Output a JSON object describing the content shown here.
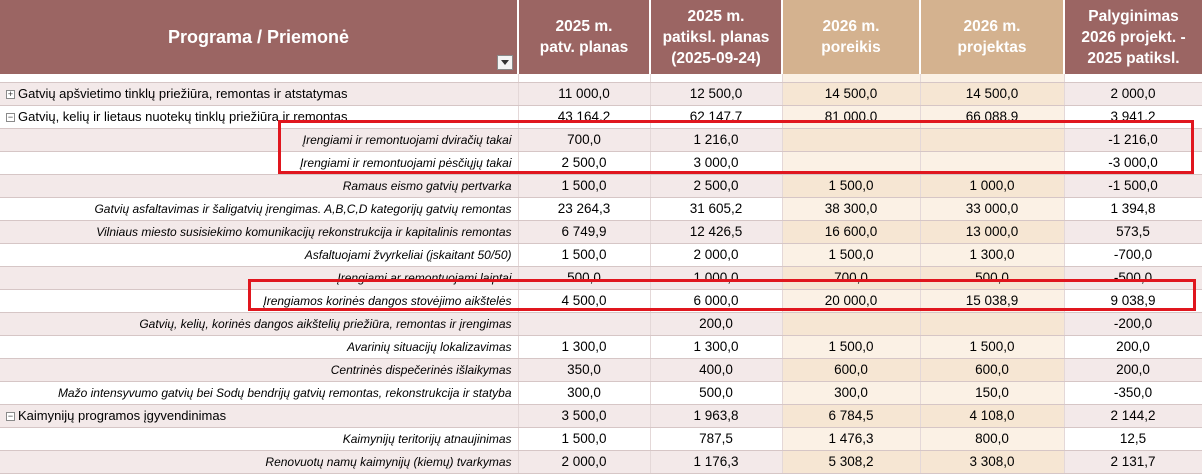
{
  "header": {
    "col_name": "Programa / Priemonė",
    "col1": [
      "2025 m.",
      "patv. planas"
    ],
    "col2": [
      "2025 m.",
      "patiksl. planas",
      "(2025-09-24)"
    ],
    "col3": [
      "2026 m.",
      "poreikis"
    ],
    "col4": [
      "2026 m.",
      "projektas"
    ],
    "col5": [
      "Palyginimas",
      "2026 projekt. -",
      "2025 patiksl."
    ]
  },
  "rows": [
    {
      "type": "grp",
      "toggle": "+",
      "name": "Gatvių apšvietimo tinklų priežiūra, remontas ir atstatymas",
      "v": [
        "11 000,0",
        "12 500,0",
        "14 500,0",
        "14 500,0",
        "2 000,0"
      ]
    },
    {
      "type": "grp",
      "toggle": "−",
      "name": "Gatvių, kelių ir lietaus nuotekų tinklų priežiūra ir remontas",
      "v": [
        "43 164,2",
        "62 147,7",
        "81 000,0",
        "66 088,9",
        "3 941,2"
      ]
    },
    {
      "type": "sub",
      "name": "Įrengiami ir remontuojami dviračių takai",
      "v": [
        "700,0",
        "1 216,0",
        "",
        "",
        "-1 216,0"
      ]
    },
    {
      "type": "sub",
      "name": "Įrengiami ir remontuojami pėsčiųjų takai",
      "v": [
        "2 500,0",
        "3 000,0",
        "",
        "",
        "-3 000,0"
      ]
    },
    {
      "type": "sub",
      "name": "Ramaus eismo gatvių pertvarka",
      "v": [
        "1 500,0",
        "2 500,0",
        "1 500,0",
        "1 000,0",
        "-1 500,0"
      ]
    },
    {
      "type": "sub",
      "name": "Gatvių asfaltavimas ir šaligatvių įrengimas. A,B,C,D kategorijų gatvių remontas",
      "v": [
        "23 264,3",
        "31 605,2",
        "38 300,0",
        "33 000,0",
        "1 394,8"
      ]
    },
    {
      "type": "sub",
      "name": "Vilniaus miesto susisiekimo komunikacijų rekonstrukcija ir kapitalinis remontas",
      "v": [
        "6 749,9",
        "12 426,5",
        "16 600,0",
        "13 000,0",
        "573,5"
      ]
    },
    {
      "type": "sub",
      "name": "Asfaltuojami žvyrkeliai (įskaitant 50/50)",
      "v": [
        "1 500,0",
        "2 000,0",
        "1 500,0",
        "1 300,0",
        "-700,0"
      ]
    },
    {
      "type": "sub",
      "name": "Įrengiami ar remontuojami laiptai",
      "v": [
        "500,0",
        "1 000,0",
        "700,0",
        "500,0",
        "-500,0"
      ]
    },
    {
      "type": "sub",
      "name": "Įrengiamos korinės dangos stovėjimo  aikštelės",
      "v": [
        "4 500,0",
        "6 000,0",
        "20 000,0",
        "15 038,9",
        "9 038,9"
      ]
    },
    {
      "type": "sub",
      "name": "Gatvių, kelių, korinės dangos aikštelių priežiūra, remontas ir įrengimas",
      "v": [
        "",
        "200,0",
        "",
        "",
        "-200,0"
      ]
    },
    {
      "type": "sub",
      "name": "Avarinių situacijų lokalizavimas",
      "v": [
        "1 300,0",
        "1 300,0",
        "1 500,0",
        "1 500,0",
        "200,0"
      ]
    },
    {
      "type": "sub",
      "name": "Centrinės dispečerinės išlaikymas",
      "v": [
        "350,0",
        "400,0",
        "600,0",
        "600,0",
        "200,0"
      ]
    },
    {
      "type": "sub",
      "name": "Mažo intensyvumo gatvių bei Sodų bendrijų gatvių remontas, rekonstrukcija ir statyba",
      "v": [
        "300,0",
        "500,0",
        "300,0",
        "150,0",
        "-350,0"
      ]
    },
    {
      "type": "grp",
      "toggle": "−",
      "name": "Kaimynijų programos įgyvendinimas",
      "v": [
        "3 500,0",
        "1 963,8",
        "6 784,5",
        "4 108,0",
        "2 144,2"
      ]
    },
    {
      "type": "sub",
      "name": "Kaimynijų teritorijų atnaujinimas",
      "v": [
        "1 500,0",
        "787,5",
        "1 476,3",
        "800,0",
        "12,5"
      ]
    },
    {
      "type": "sub",
      "name": "Renovuotų namų kaimynijų (kiemų) tvarkymas",
      "v": [
        "2 000,0",
        "1 176,3",
        "5 308,2",
        "3 308,0",
        "2 131,7"
      ]
    }
  ]
}
